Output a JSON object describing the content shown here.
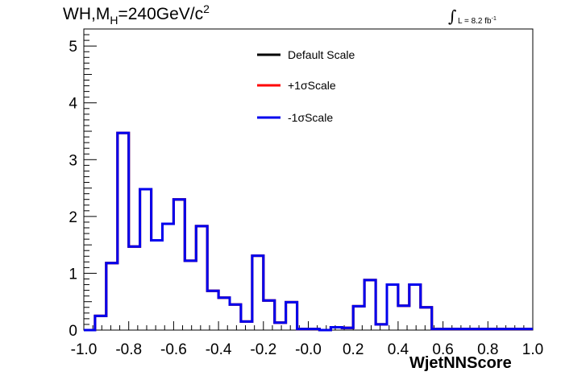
{
  "title": {
    "prefix": "WH,M",
    "subscript": "H",
    "value": "=240GeV/c",
    "superscript": "2"
  },
  "luminosity": {
    "symbol": "∫",
    "text": "L = 8.2 fb",
    "superscript": "-1"
  },
  "chart_data": {
    "type": "line",
    "style": "step histogram",
    "xlabel": "WjetNNScore",
    "ylabel": "",
    "xlim": [
      -1.0,
      1.0
    ],
    "ylim": [
      0,
      5.3
    ],
    "x_ticks": [
      "-1.0",
      "-0.8",
      "-0.6",
      "-0.4",
      "-0.2",
      "-0.0",
      "0.2",
      "0.4",
      "0.6",
      "0.8",
      "1.0"
    ],
    "y_ticks": [
      "0",
      "1",
      "2",
      "3",
      "4",
      "5"
    ],
    "bin_edges": [
      -1.0,
      -0.95,
      -0.9,
      -0.85,
      -0.8,
      -0.75,
      -0.7,
      -0.65,
      -0.6,
      -0.55,
      -0.5,
      -0.45,
      -0.4,
      -0.35,
      -0.3,
      -0.25,
      -0.2,
      -0.15,
      -0.1,
      -0.05,
      0.0,
      0.05,
      0.1,
      0.15,
      0.2,
      0.25,
      0.3,
      0.35,
      0.4,
      0.45,
      0.5,
      0.55,
      0.6,
      0.65,
      0.7,
      0.75,
      0.8,
      0.85,
      0.9,
      0.95,
      1.0
    ],
    "series": [
      {
        "name": "Default Scale",
        "color": "#000000",
        "values": [
          0.0,
          0.25,
          1.18,
          3.47,
          1.47,
          2.48,
          1.58,
          1.87,
          2.3,
          1.22,
          1.83,
          0.69,
          0.57,
          0.45,
          0.15,
          1.31,
          0.52,
          0.13,
          0.49,
          0.02,
          0.02,
          0.0,
          0.05,
          0.04,
          0.42,
          0.88,
          0.1,
          0.8,
          0.43,
          0.8,
          0.4,
          0.02,
          0.02,
          0.02,
          0.02,
          0.02,
          0.02,
          0.02,
          0.02,
          0.02
        ]
      },
      {
        "name": "+1σScale",
        "color": "#ff0000",
        "values": [
          0.0,
          0.25,
          1.18,
          3.47,
          1.47,
          2.48,
          1.58,
          1.87,
          2.3,
          1.22,
          1.83,
          0.69,
          0.57,
          0.45,
          0.15,
          1.31,
          0.52,
          0.13,
          0.49,
          0.02,
          0.02,
          0.0,
          0.05,
          0.04,
          0.42,
          0.88,
          0.1,
          0.8,
          0.43,
          0.8,
          0.4,
          0.02,
          0.02,
          0.02,
          0.02,
          0.02,
          0.02,
          0.02,
          0.02,
          0.02
        ]
      },
      {
        "name": "-1σScale",
        "color": "#0000ee",
        "values": [
          0.0,
          0.25,
          1.18,
          3.47,
          1.47,
          2.48,
          1.58,
          1.87,
          2.3,
          1.22,
          1.83,
          0.69,
          0.57,
          0.45,
          0.15,
          1.31,
          0.52,
          0.13,
          0.49,
          0.02,
          0.02,
          0.0,
          0.05,
          0.04,
          0.42,
          0.88,
          0.1,
          0.8,
          0.43,
          0.8,
          0.4,
          0.02,
          0.02,
          0.02,
          0.02,
          0.02,
          0.02,
          0.02,
          0.02,
          0.02
        ]
      }
    ],
    "legend_position": "top-center",
    "grid": false
  }
}
